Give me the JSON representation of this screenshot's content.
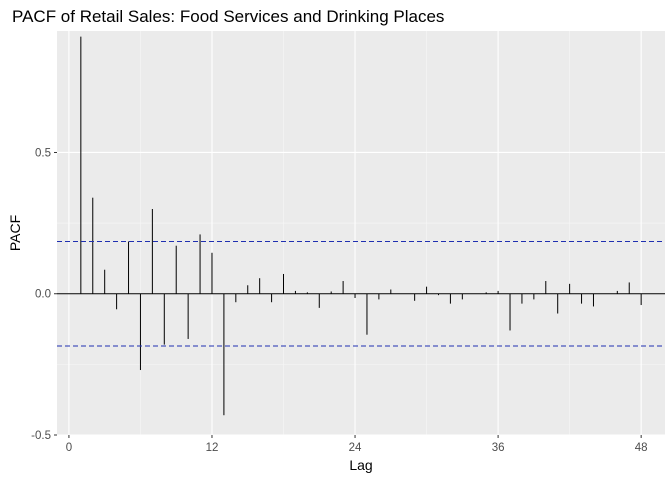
{
  "chart_data": {
    "type": "bar",
    "title": "PACF of Retail Sales: Food Services and Drinking Places",
    "xlabel": "Lag",
    "ylabel": "PACF",
    "xlim": [
      -1,
      50
    ],
    "ylim": [
      -0.5,
      0.93
    ],
    "x_ticks": [
      0,
      12,
      24,
      36,
      48
    ],
    "y_ticks": [
      -0.5,
      0.0,
      0.5
    ],
    "y_tick_labels": [
      "-0.5",
      "0.0",
      "0.5"
    ],
    "confidence_bounds": [
      0.185,
      -0.185
    ],
    "grid": true,
    "background": "#ebebeb",
    "bar_color": "#000000",
    "bound_color": "#1f2fb0",
    "lags": [
      1,
      2,
      3,
      4,
      5,
      6,
      7,
      8,
      9,
      10,
      11,
      12,
      13,
      14,
      15,
      16,
      17,
      18,
      19,
      20,
      21,
      22,
      23,
      24,
      25,
      26,
      27,
      28,
      29,
      30,
      31,
      32,
      33,
      34,
      35,
      36,
      37,
      38,
      39,
      40,
      41,
      42,
      43,
      44,
      45,
      46,
      47,
      48
    ],
    "values": [
      0.91,
      0.34,
      0.085,
      -0.055,
      0.185,
      -0.27,
      0.3,
      -0.18,
      0.17,
      -0.16,
      0.21,
      0.145,
      -0.43,
      -0.03,
      0.03,
      0.055,
      -0.03,
      0.07,
      0.01,
      0.005,
      -0.05,
      0.008,
      0.045,
      -0.015,
      -0.145,
      -0.02,
      0.015,
      0.0,
      -0.025,
      0.025,
      -0.005,
      -0.035,
      -0.02,
      0.0,
      0.005,
      0.01,
      -0.13,
      -0.035,
      -0.02,
      0.045,
      -0.07,
      0.035,
      -0.035,
      -0.045,
      0.0,
      0.01,
      0.04,
      -0.04
    ]
  }
}
